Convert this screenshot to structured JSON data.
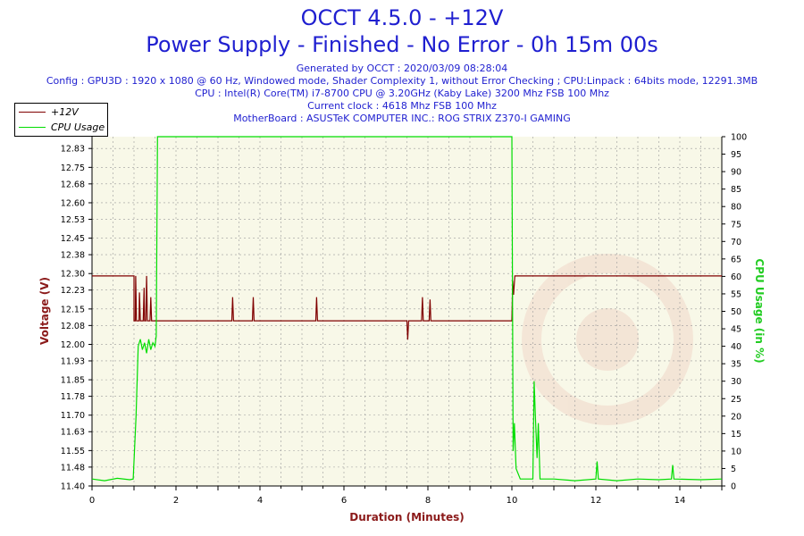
{
  "header": {
    "title": "OCCT 4.5.0 - +12V",
    "subtitle": "Power Supply - Finished - No Error - 0h 15m 00s",
    "info_lines": [
      "Generated by OCCT : 2020/03/09 08:28:04",
      "Config : GPU3D : 1920 x 1080 @ 60 Hz, Windowed mode, Shader Complexity 1, without Error Checking ; CPU:Linpack : 64bits mode, 12291.3MB",
      "CPU : Intel(R) Core(TM) i7-8700 CPU @ 3.20GHz (Kaby Lake) 3200 Mhz FSB 100 Mhz",
      "Current clock : 4618 Mhz FSB 100 Mhz",
      "MotherBoard : ASUSTeK COMPUTER INC.: ROG STRIX Z370-I GAMING"
    ]
  },
  "legend": {
    "items": [
      {
        "label": "+12V",
        "color": "#800000"
      },
      {
        "label": "CPU Usage",
        "color": "#00dd00"
      }
    ]
  },
  "chart_data": {
    "type": "line",
    "xlabel": "Duration (Minutes)",
    "ylabel_left": "Voltage (V)",
    "ylabel_right": "CPU Usage (in %)",
    "xlim": [
      0,
      15
    ],
    "ylim_left": [
      11.4,
      12.88
    ],
    "ylim_right": [
      0,
      100
    ],
    "x_ticks": [
      "0",
      "2",
      "4",
      "6",
      "8",
      "10",
      "12",
      "14"
    ],
    "y_ticks_left": [
      "11.40",
      "11.48",
      "11.55",
      "11.63",
      "11.70",
      "11.78",
      "11.85",
      "11.93",
      "12.00",
      "12.08",
      "12.15",
      "12.23",
      "12.30",
      "12.38",
      "12.45",
      "12.53",
      "12.60",
      "12.68",
      "12.75",
      "12.83"
    ],
    "y_ticks_right": [
      "0",
      "5",
      "10",
      "15",
      "20",
      "25",
      "30",
      "35",
      "40",
      "45",
      "50",
      "55",
      "60",
      "65",
      "70",
      "75",
      "80",
      "85",
      "90",
      "95",
      "100"
    ],
    "grid": true,
    "background_color": "#f8f8e8",
    "series": [
      {
        "name": "+12V",
        "color": "#800000",
        "axis": "left",
        "points": [
          [
            0,
            12.29
          ],
          [
            1.0,
            12.29
          ],
          [
            1.0,
            12.1
          ],
          [
            1.03,
            12.1
          ],
          [
            1.04,
            12.29
          ],
          [
            1.06,
            12.1
          ],
          [
            1.12,
            12.1
          ],
          [
            1.13,
            12.22
          ],
          [
            1.15,
            12.1
          ],
          [
            1.22,
            12.1
          ],
          [
            1.24,
            12.24
          ],
          [
            1.25,
            12.1
          ],
          [
            1.28,
            12.1
          ],
          [
            1.3,
            12.29
          ],
          [
            1.32,
            12.1
          ],
          [
            1.38,
            12.1
          ],
          [
            1.4,
            12.2
          ],
          [
            1.42,
            12.1
          ],
          [
            3.33,
            12.1
          ],
          [
            3.35,
            12.2
          ],
          [
            3.37,
            12.1
          ],
          [
            3.82,
            12.1
          ],
          [
            3.84,
            12.2
          ],
          [
            3.86,
            12.1
          ],
          [
            5.33,
            12.1
          ],
          [
            5.35,
            12.2
          ],
          [
            5.37,
            12.1
          ],
          [
            7.5,
            12.1
          ],
          [
            7.52,
            12.02
          ],
          [
            7.54,
            12.1
          ],
          [
            7.85,
            12.1
          ],
          [
            7.87,
            12.2
          ],
          [
            7.89,
            12.1
          ],
          [
            8.03,
            12.1
          ],
          [
            8.05,
            12.19
          ],
          [
            8.07,
            12.1
          ],
          [
            10.0,
            12.1
          ],
          [
            10.02,
            12.27
          ],
          [
            10.04,
            12.21
          ],
          [
            10.07,
            12.29
          ],
          [
            15,
            12.29
          ]
        ]
      },
      {
        "name": "CPU Usage",
        "color": "#00dd00",
        "axis": "right",
        "points": [
          [
            0,
            2
          ],
          [
            0.3,
            1.5
          ],
          [
            0.6,
            2.2
          ],
          [
            0.9,
            1.8
          ],
          [
            0.98,
            2
          ],
          [
            1.05,
            20
          ],
          [
            1.1,
            40
          ],
          [
            1.15,
            42
          ],
          [
            1.2,
            39
          ],
          [
            1.25,
            41
          ],
          [
            1.3,
            38
          ],
          [
            1.35,
            42
          ],
          [
            1.4,
            39
          ],
          [
            1.45,
            41
          ],
          [
            1.5,
            40
          ],
          [
            1.53,
            43
          ],
          [
            1.56,
            100
          ],
          [
            10.0,
            100
          ],
          [
            10.03,
            10
          ],
          [
            10.06,
            18
          ],
          [
            10.1,
            5
          ],
          [
            10.2,
            2
          ],
          [
            10.5,
            2
          ],
          [
            10.53,
            30
          ],
          [
            10.56,
            20
          ],
          [
            10.6,
            8
          ],
          [
            10.63,
            18
          ],
          [
            10.67,
            2
          ],
          [
            11.0,
            2
          ],
          [
            11.5,
            1.5
          ],
          [
            12.0,
            2
          ],
          [
            12.03,
            7
          ],
          [
            12.06,
            2
          ],
          [
            12.5,
            1.5
          ],
          [
            13.0,
            2
          ],
          [
            13.5,
            1.8
          ],
          [
            13.8,
            2
          ],
          [
            13.83,
            6
          ],
          [
            13.86,
            2
          ],
          [
            14.5,
            1.8
          ],
          [
            15,
            2
          ]
        ]
      }
    ]
  }
}
